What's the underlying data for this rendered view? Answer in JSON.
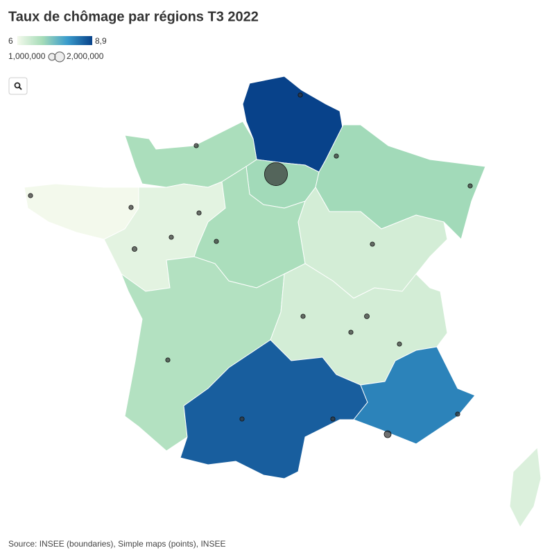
{
  "title": "Taux de chômage par régions T3 2022",
  "legend": {
    "color_min": 6,
    "color_max": {
      "value": 8.9,
      "label": "8,9"
    },
    "colors": [
      "#f3f9ec",
      "#a6dcb8",
      "#3a9ccc",
      "#08428a"
    ],
    "size_ticks": [
      {
        "value": 1000000,
        "label": "1,000,000"
      },
      {
        "value": 2000000,
        "label": "2,000,000"
      }
    ]
  },
  "regions": [
    {
      "value": 8.9
    },
    {
      "value": 7.0
    },
    {
      "value": 6.9
    },
    {
      "value": 7.0
    },
    {
      "value": 6.0
    },
    {
      "value": 6.2
    },
    {
      "value": 6.9
    },
    {
      "value": 6.4
    },
    {
      "value": 6.8
    },
    {
      "value": 6.4
    },
    {
      "value": 8.6
    },
    {
      "value": 8.2
    },
    {
      "value": 6.3
    }
  ],
  "points": [
    {
      "population": 11000000
    },
    {
      "population": 1000000
    },
    {
      "population": 400000
    },
    {
      "population": 400000
    },
    {
      "population": 400000
    },
    {
      "population": 400000
    },
    {
      "population": 400000
    },
    {
      "population": 400000
    },
    {
      "population": 400000
    },
    {
      "population": 400000
    },
    {
      "population": 500000
    },
    {
      "population": 400000
    },
    {
      "population": 400000
    },
    {
      "population": 400000
    },
    {
      "population": 500000
    },
    {
      "population": 400000
    },
    {
      "population": 400000
    },
    {
      "population": 400000
    },
    {
      "population": 400000
    },
    {
      "population": 400000
    },
    {
      "population": 400000
    }
  ],
  "source": "Source: INSEE (boundaries), Simple maps (points), INSEE"
}
